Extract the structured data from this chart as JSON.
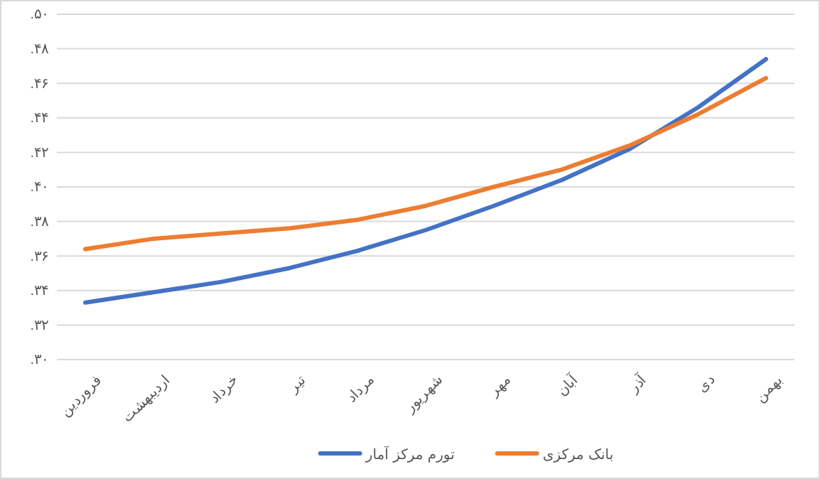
{
  "chart_data": {
    "type": "line",
    "categories": [
      "فروردین",
      "اردیبهشت",
      "خرداد",
      "تیر",
      "مرداد",
      "شهریور",
      "مهر",
      "آبان",
      "آذر",
      "دی",
      "بهمن"
    ],
    "series": [
      {
        "name": "تورم مرکز آمار",
        "color": "#4472c4",
        "values": [
          0.333,
          0.339,
          0.345,
          0.353,
          0.363,
          0.375,
          0.389,
          0.404,
          0.422,
          0.446,
          0.474
        ]
      },
      {
        "name": "بانک مرکزی",
        "color": "#ed7d31",
        "values": [
          0.364,
          0.37,
          0.373,
          0.376,
          0.381,
          0.389,
          0.4,
          0.41,
          0.424,
          0.442,
          0.463
        ]
      }
    ],
    "ylim": [
      0.3,
      0.5
    ],
    "yticks": [
      {
        "value": 0.3,
        "label": ".۳۰"
      },
      {
        "value": 0.32,
        "label": ".۳۲"
      },
      {
        "value": 0.34,
        "label": ".۳۴"
      },
      {
        "value": 0.36,
        "label": ".۳۶"
      },
      {
        "value": 0.38,
        "label": ".۳۸"
      },
      {
        "value": 0.4,
        "label": ".۴۰"
      },
      {
        "value": 0.42,
        "label": ".۴۲"
      },
      {
        "value": 0.44,
        "label": ".۴۴"
      },
      {
        "value": 0.46,
        "label": ".۴۶"
      },
      {
        "value": 0.48,
        "label": ".۴۸"
      },
      {
        "value": 0.5,
        "label": ".۵۰"
      }
    ],
    "grid": "y",
    "legend": "bottom",
    "marker": "none",
    "line_style": "solid"
  }
}
